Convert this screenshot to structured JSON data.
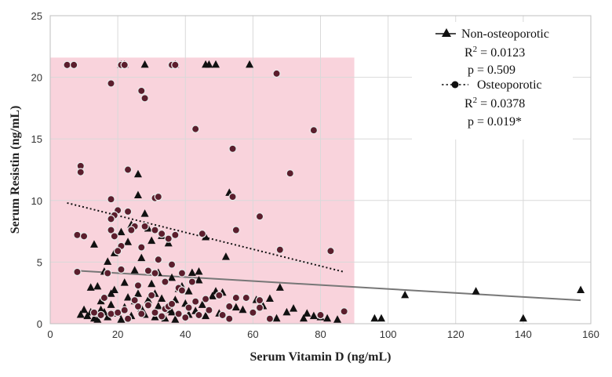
{
  "chart_data": {
    "type": "scatter",
    "title": "",
    "xlabel": "Serum Vitamin D (ng/mL)",
    "ylabel": "Serum Resistin (ng/mL)",
    "xlim": [
      0,
      160
    ],
    "ylim": [
      0,
      25
    ],
    "x_ticks": [
      0,
      20,
      40,
      60,
      80,
      100,
      120,
      140,
      160
    ],
    "y_ticks": [
      0,
      5,
      10,
      15,
      20,
      25
    ],
    "grid": true,
    "legend_position": "top-right",
    "highlight_region": {
      "x": [
        0,
        90
      ],
      "y": [
        0,
        21.6
      ],
      "color": "#f9d3dc"
    },
    "colors": {
      "non_osteoporotic_marker": "#111111",
      "osteoporotic_fill": "#5b1e2d",
      "osteoporotic_edge": "#e8e8e8",
      "non_osteo_trend": "#777777",
      "osteo_trend": "#111111",
      "grid": "#d9d9d9"
    },
    "series": [
      {
        "name": "Non-osteoporotic",
        "marker": "triangle",
        "r_squared_label": "R² = 0.0123",
        "r2_base": "R",
        "r2_sup": "2",
        "r2_rest": " = 0.0123",
        "p_label": "p = 0.509",
        "trendline": {
          "style": "solid",
          "x": [
            8,
            157
          ],
          "y": [
            4.3,
            1.9
          ]
        },
        "points": [
          [
            9,
            0.7
          ],
          [
            10,
            1.1
          ],
          [
            11,
            0.6
          ],
          [
            12,
            0.9
          ],
          [
            13,
            0.4
          ],
          [
            14,
            0.3
          ],
          [
            15,
            1.1
          ],
          [
            16,
            0.9
          ],
          [
            17,
            0.5
          ],
          [
            18,
            1.5
          ],
          [
            19,
            2.7
          ],
          [
            20,
            0.8
          ],
          [
            21,
            0.3
          ],
          [
            22,
            1.3
          ],
          [
            23,
            2.1
          ],
          [
            24,
            0.6
          ],
          [
            25,
            1.8
          ],
          [
            26,
            2.4
          ],
          [
            27,
            1.2
          ],
          [
            28,
            0.7
          ],
          [
            29,
            1.9
          ],
          [
            30,
            3.2
          ],
          [
            31,
            0.5
          ],
          [
            32,
            1.4
          ],
          [
            33,
            2.0
          ],
          [
            34,
            0.4
          ],
          [
            35,
            1.1
          ],
          [
            36,
            0.9
          ],
          [
            37,
            0.3
          ],
          [
            38,
            2.8
          ],
          [
            39,
            3.0
          ],
          [
            40,
            1.6
          ],
          [
            41,
            0.7
          ],
          [
            42,
            4.1
          ],
          [
            43,
            1.0
          ],
          [
            45,
            1.5
          ],
          [
            46,
            0.6
          ],
          [
            48,
            2.2
          ],
          [
            50,
            0.8
          ],
          [
            51,
            2.5
          ],
          [
            52,
            5.4
          ],
          [
            53,
            10.6
          ],
          [
            55,
            1.3
          ],
          [
            57,
            1.1
          ],
          [
            61,
            1.9
          ],
          [
            63,
            1.4
          ],
          [
            65,
            2.0
          ],
          [
            67,
            0.4
          ],
          [
            68,
            2.9
          ],
          [
            70,
            0.9
          ],
          [
            72,
            1.2
          ],
          [
            75,
            0.4
          ],
          [
            76,
            0.8
          ],
          [
            78,
            0.6
          ],
          [
            80,
            0.5
          ],
          [
            82,
            0.4
          ],
          [
            85,
            0.3
          ],
          [
            13,
            6.4
          ],
          [
            14,
            3.0
          ],
          [
            16,
            4.2
          ],
          [
            17,
            5.0
          ],
          [
            18,
            2.4
          ],
          [
            19,
            5.7
          ],
          [
            21,
            7.4
          ],
          [
            23,
            6.6
          ],
          [
            24,
            8.0
          ],
          [
            25,
            4.3
          ],
          [
            26,
            10.4
          ],
          [
            26,
            12.1
          ],
          [
            27,
            5.3
          ],
          [
            28,
            8.9
          ],
          [
            29,
            7.7
          ],
          [
            30,
            6.7
          ],
          [
            32,
            4.1
          ],
          [
            33,
            7.1
          ],
          [
            35,
            6.5
          ],
          [
            36,
            3.7
          ],
          [
            44,
            4.2
          ],
          [
            46,
            7.0
          ],
          [
            49,
            2.6
          ],
          [
            12,
            2.9
          ],
          [
            15,
            1.8
          ],
          [
            22,
            3.3
          ],
          [
            31,
            2.4
          ],
          [
            37,
            1.9
          ],
          [
            41,
            2.6
          ],
          [
            44,
            3.5
          ],
          [
            21,
            21.0
          ],
          [
            22,
            21.0
          ],
          [
            28,
            21.0
          ],
          [
            37,
            21.0
          ],
          [
            46,
            21.0
          ],
          [
            47,
            21.0
          ],
          [
            49,
            21.0
          ],
          [
            59,
            21.0
          ],
          [
            96,
            0.4
          ],
          [
            98,
            0.4
          ],
          [
            105,
            2.3
          ],
          [
            126,
            2.6
          ],
          [
            140,
            0.4
          ],
          [
            157,
            2.7
          ]
        ]
      },
      {
        "name": "Osteoporotic",
        "marker": "circle",
        "r_squared_label": "R² = 0.0378",
        "r2_base": "R",
        "r2_sup": "2",
        "r2_rest": " = 0.0378",
        "p_label": "p = 0.019*",
        "trendline": {
          "style": "dotted",
          "x": [
            5,
            87
          ],
          "y": [
            9.8,
            4.2
          ]
        },
        "points": [
          [
            5,
            21.0
          ],
          [
            7,
            21.0
          ],
          [
            21,
            21.0
          ],
          [
            22,
            21.0
          ],
          [
            36,
            21.0
          ],
          [
            37,
            21.0
          ],
          [
            67,
            20.3
          ],
          [
            18,
            19.5
          ],
          [
            27,
            18.9
          ],
          [
            28,
            18.3
          ],
          [
            43,
            15.8
          ],
          [
            78,
            15.7
          ],
          [
            54,
            14.2
          ],
          [
            9,
            12.8
          ],
          [
            9,
            12.3
          ],
          [
            23,
            12.5
          ],
          [
            71,
            12.2
          ],
          [
            18,
            10.1
          ],
          [
            31,
            10.2
          ],
          [
            32,
            10.3
          ],
          [
            54,
            10.3
          ],
          [
            20,
            9.2
          ],
          [
            23,
            9.1
          ],
          [
            62,
            8.7
          ],
          [
            19,
            8.8
          ],
          [
            18,
            8.5
          ],
          [
            18,
            7.6
          ],
          [
            19,
            7.1
          ],
          [
            25,
            7.9
          ],
          [
            28,
            7.9
          ],
          [
            24,
            7.6
          ],
          [
            33,
            7.3
          ],
          [
            35,
            6.9
          ],
          [
            37,
            7.2
          ],
          [
            21,
            6.3
          ],
          [
            20,
            5.9
          ],
          [
            27,
            6.2
          ],
          [
            31,
            7.6
          ],
          [
            45,
            7.3
          ],
          [
            55,
            7.6
          ],
          [
            68,
            6.0
          ],
          [
            83,
            5.9
          ],
          [
            8,
            7.2
          ],
          [
            10,
            7.1
          ],
          [
            8,
            4.2
          ],
          [
            21,
            4.4
          ],
          [
            29,
            4.3
          ],
          [
            31,
            4.1
          ],
          [
            32,
            5.2
          ],
          [
            36,
            4.8
          ],
          [
            39,
            4.1
          ],
          [
            17,
            4.1
          ],
          [
            26,
            3.1
          ],
          [
            34,
            3.4
          ],
          [
            38,
            2.9
          ],
          [
            42,
            3.4
          ],
          [
            39,
            2.7
          ],
          [
            16,
            2.1
          ],
          [
            18,
            0.8
          ],
          [
            20,
            0.9
          ],
          [
            22,
            1.1
          ],
          [
            23,
            0.4
          ],
          [
            25,
            1.9
          ],
          [
            26,
            1.4
          ],
          [
            27,
            0.8
          ],
          [
            29,
            1.5
          ],
          [
            30,
            2.3
          ],
          [
            31,
            0.9
          ],
          [
            33,
            0.6
          ],
          [
            34,
            1.2
          ],
          [
            35,
            1.4
          ],
          [
            38,
            0.8
          ],
          [
            40,
            0.5
          ],
          [
            41,
            1.3
          ],
          [
            43,
            1.8
          ],
          [
            44,
            0.7
          ],
          [
            47,
            1.1
          ],
          [
            50,
            2.3
          ],
          [
            53,
            1.4
          ],
          [
            55,
            2.1
          ],
          [
            58,
            2.1
          ],
          [
            60,
            0.9
          ],
          [
            62,
            1.3
          ],
          [
            65,
            0.4
          ],
          [
            80,
            0.7
          ],
          [
            87,
            1.0
          ],
          [
            13,
            0.9
          ],
          [
            15,
            0.7
          ],
          [
            36,
            1.6
          ],
          [
            46,
            2.0
          ],
          [
            53,
            0.4
          ],
          [
            51,
            0.7
          ],
          [
            62,
            1.9
          ]
        ]
      }
    ]
  }
}
